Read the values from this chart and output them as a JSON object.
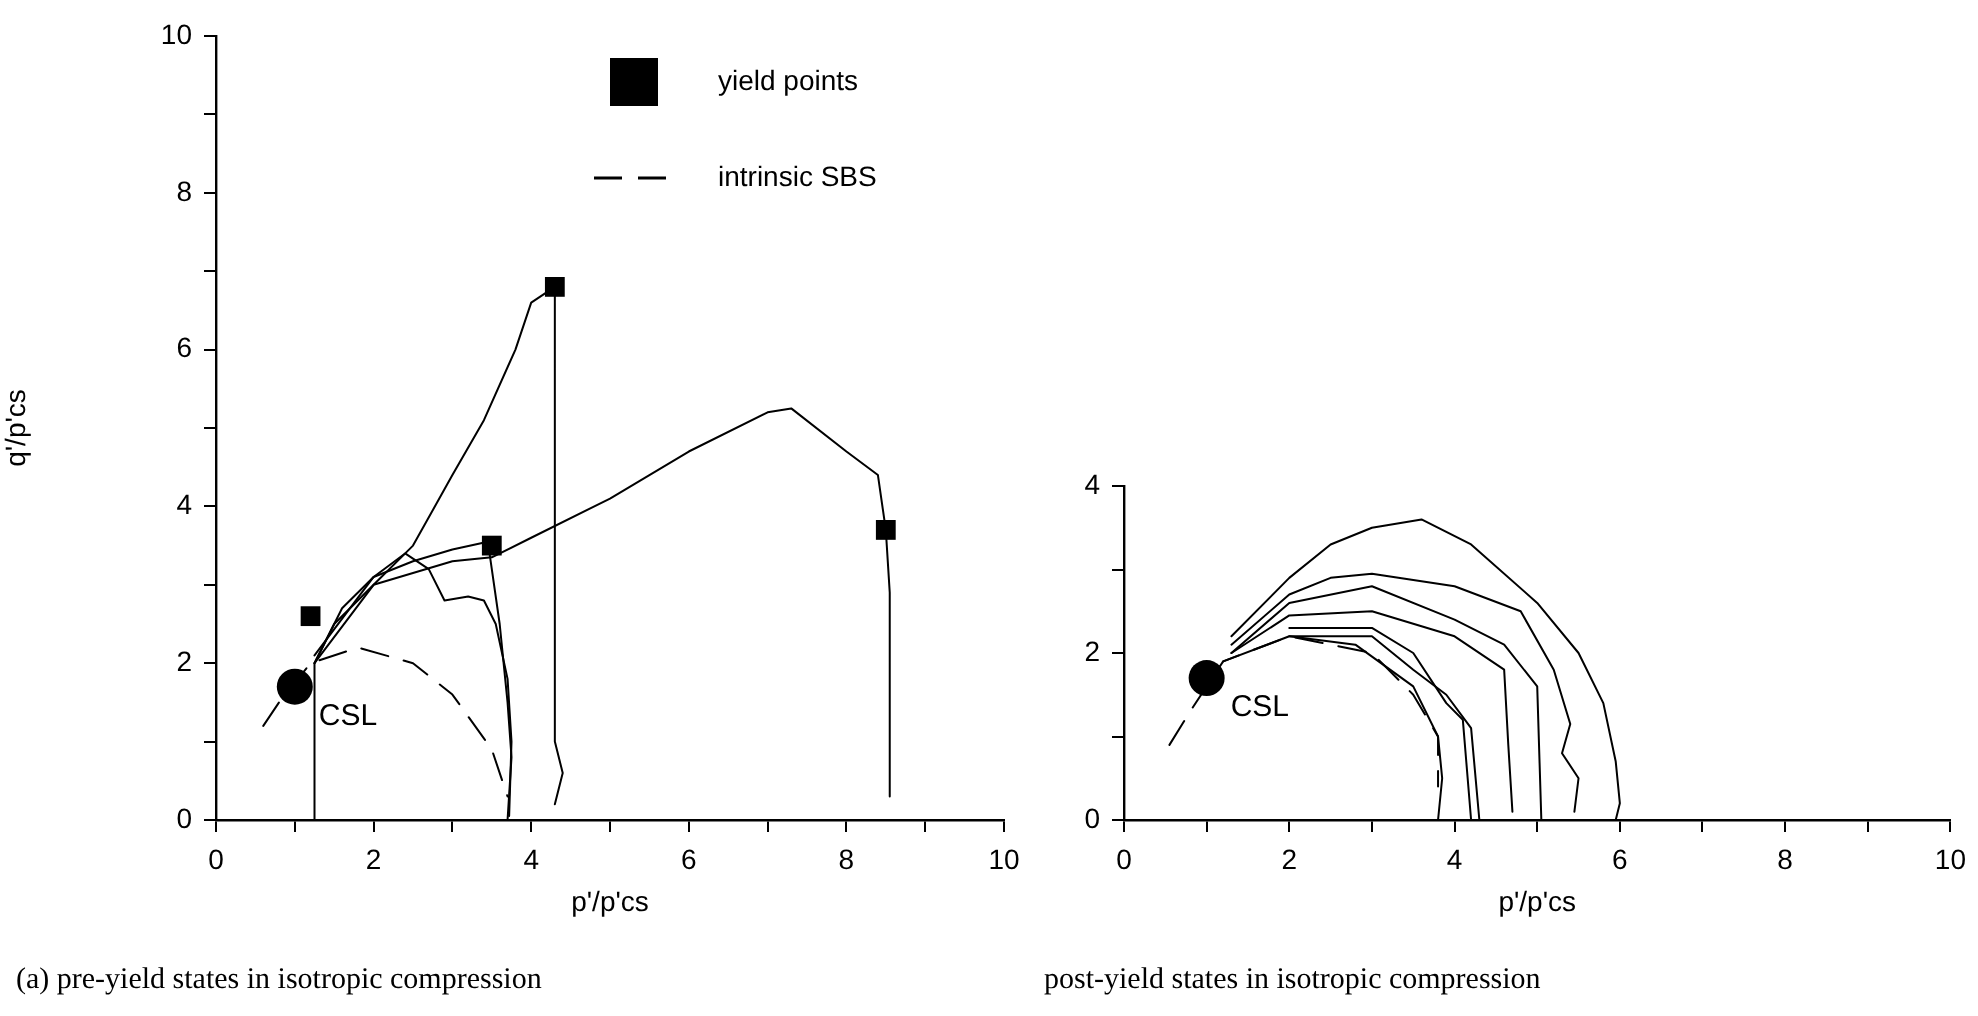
{
  "chart_data": [
    {
      "type": "line",
      "xlabel": "p'/p'cs",
      "ylabel": "q'/p'cs",
      "xlim": [
        0,
        10
      ],
      "ylim": [
        0,
        10
      ],
      "xticks": [
        0,
        {
          "value": 1,
          "label": null
        },
        2,
        {
          "value": 3,
          "label": null
        },
        4,
        {
          "value": 5,
          "label": null
        },
        6,
        {
          "value": 7,
          "label": null
        },
        8,
        {
          "value": 9,
          "label": null
        },
        10
      ],
      "yticks": [
        0,
        {
          "value": 1,
          "label": null
        },
        2,
        {
          "value": 3,
          "label": null
        },
        4,
        {
          "value": 5,
          "label": null
        },
        6,
        {
          "value": 7,
          "label": null
        },
        8,
        {
          "value": 9,
          "label": null
        },
        10
      ],
      "grid": false,
      "legend": "top right",
      "line_style": "solid",
      "marker": "none",
      "annotations": [
        {
          "text": "CSL",
          "x": 1,
          "y": 1.7
        },
        "(a) pre-yield states in isotropic compression"
      ],
      "series": [
        {
          "type": "line",
          "color": "#000000",
          "x": [
            1.25,
            1.25,
            1.5,
            2.0,
            2.5,
            3.0,
            3.4,
            3.8,
            4.0,
            4.3,
            4.3,
            4.4,
            4.3
          ],
          "values": [
            0,
            2.0,
            2.5,
            3.0,
            3.5,
            4.4,
            5.1,
            6.0,
            6.6,
            6.8,
            1.0,
            0.6,
            0.2
          ]
        },
        {
          "type": "line",
          "color": "#000000",
          "x": [
            1.25,
            1.6,
            2.0,
            2.5,
            3.0,
            3.45,
            3.5,
            3.6,
            3.7,
            3.75,
            3.7
          ],
          "values": [
            2.0,
            2.7,
            3.1,
            3.3,
            3.45,
            3.55,
            3.2,
            2.5,
            1.5,
            0.8,
            0
          ]
        },
        {
          "type": "line",
          "color": "#000000",
          "x": [
            1.25,
            2.0,
            2.4,
            2.7,
            2.9,
            3.2,
            3.4,
            3.55,
            3.7,
            3.75,
            3.72
          ],
          "values": [
            2.1,
            3.1,
            3.4,
            3.2,
            2.8,
            2.85,
            2.8,
            2.5,
            1.8,
            1.0,
            0.05
          ]
        },
        {
          "type": "line",
          "color": "#000000",
          "x": [
            1.25,
            2.0,
            3.0,
            3.5,
            4.0,
            5.0,
            5.5,
            6.0,
            7.0,
            7.3,
            8.0,
            8.4,
            8.5,
            8.55,
            8.55
          ],
          "values": [
            2.0,
            3.0,
            3.3,
            3.35,
            3.6,
            4.1,
            4.4,
            4.7,
            5.2,
            5.25,
            4.7,
            4.4,
            3.7,
            2.9,
            0.3
          ]
        },
        {
          "type": "scatter",
          "color": "#000000",
          "marker": "square",
          "name": "yield points",
          "x": [
            1.2,
            3.5,
            4.3,
            8.5
          ],
          "values": [
            2.6,
            3.5,
            6.8,
            3.7
          ]
        },
        {
          "type": "line",
          "color": "#000000",
          "line_style": "dashed",
          "name": "intrinsic SBS",
          "x": [
            0.6,
            0.8,
            1.2,
            1.8,
            2.5,
            3.0,
            3.5,
            3.7
          ],
          "values": [
            1.2,
            1.5,
            2.0,
            2.2,
            2.0,
            1.6,
            0.9,
            0.3
          ]
        },
        {
          "type": "scatter",
          "color": "#000000",
          "marker": "circle",
          "x": [
            1.0
          ],
          "values": [
            1.7
          ]
        }
      ]
    },
    {
      "type": "line",
      "xlabel": "p'/p'cs",
      "xlim": [
        0,
        10
      ],
      "ylim": [
        0,
        4
      ],
      "xticks": [
        0,
        {
          "value": 1,
          "label": null
        },
        2,
        {
          "value": 3,
          "label": null
        },
        4,
        {
          "value": 5,
          "label": null
        },
        6,
        {
          "value": 7,
          "label": null
        },
        8,
        {
          "value": 9,
          "label": null
        },
        10
      ],
      "yticks": [
        0,
        {
          "value": 1,
          "label": null
        },
        2,
        {
          "value": 3,
          "label": null
        },
        4
      ],
      "grid": false,
      "line_style": "solid",
      "marker": "none",
      "annotations": [
        {
          "text": "CSL",
          "x": 1,
          "y": 1.7
        },
        "post-yield states in isotropic compression"
      ],
      "series": [
        {
          "type": "line",
          "color": "#000000",
          "x": [
            1.3,
            2.0,
            2.5,
            3.0,
            3.6,
            4.2,
            5.0,
            5.5,
            5.8,
            5.95,
            6.0,
            5.95
          ],
          "values": [
            2.2,
            2.9,
            3.3,
            3.5,
            3.6,
            3.3,
            2.6,
            2.0,
            1.4,
            0.7,
            0.2,
            0
          ]
        },
        {
          "type": "line",
          "color": "#000000",
          "x": [
            1.3,
            2.0,
            2.5,
            3.0,
            4.0,
            4.8,
            5.2,
            5.4,
            5.3,
            5.5,
            5.45
          ],
          "values": [
            2.1,
            2.7,
            2.9,
            2.95,
            2.8,
            2.5,
            1.8,
            1.15,
            0.8,
            0.5,
            0.1
          ]
        },
        {
          "type": "line",
          "color": "#000000",
          "x": [
            1.3,
            2.0,
            3.0,
            4.0,
            4.6,
            5.0,
            5.05
          ],
          "values": [
            2.0,
            2.6,
            2.8,
            2.4,
            2.1,
            1.6,
            0
          ]
        },
        {
          "type": "line",
          "color": "#000000",
          "x": [
            1.3,
            2.0,
            3.0,
            4.0,
            4.6,
            4.65,
            4.7
          ],
          "values": [
            2.0,
            2.45,
            2.5,
            2.2,
            1.8,
            0.9,
            0.1
          ]
        },
        {
          "type": "line",
          "color": "#000000",
          "x": [
            1.2,
            2.0,
            3.0,
            3.5,
            3.9,
            4.2,
            4.3
          ],
          "values": [
            1.9,
            2.2,
            2.2,
            1.8,
            1.5,
            1.1,
            0
          ]
        },
        {
          "type": "line",
          "color": "#000000",
          "x": [
            2.0,
            3.0,
            3.5,
            3.9,
            4.1,
            4.2
          ],
          "values": [
            2.3,
            2.3,
            2.0,
            1.4,
            1.2,
            0
          ]
        },
        {
          "type": "line",
          "color": "#000000",
          "x": [
            2.0,
            2.8,
            3.5,
            3.8,
            3.85,
            3.8
          ],
          "values": [
            2.2,
            2.1,
            1.6,
            1.0,
            0.5,
            0
          ]
        },
        {
          "type": "line",
          "color": "#000000",
          "line_style": "dashed",
          "x": [
            0.55,
            0.8,
            1.2,
            2.0,
            3.0,
            3.5,
            3.8,
            3.8
          ],
          "values": [
            0.9,
            1.3,
            1.9,
            2.2,
            2.0,
            1.5,
            1.0,
            0.4
          ]
        },
        {
          "type": "scatter",
          "color": "#000000",
          "marker": "circle",
          "x": [
            1.0
          ],
          "values": [
            1.7
          ]
        }
      ]
    }
  ]
}
